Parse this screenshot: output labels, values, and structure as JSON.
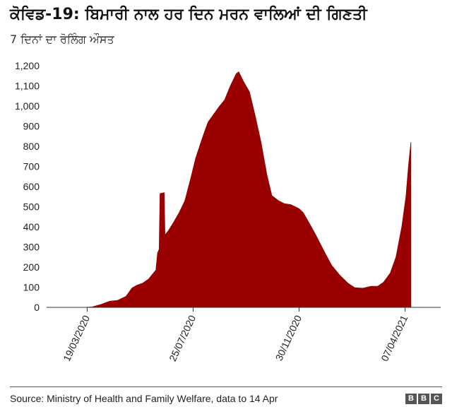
{
  "header": {
    "title": "ਕੋਵਿਡ-19: ਬਿਮਾਰੀ ਨਾਲ ਹਰ ਦਿਨ ਮਰਨ ਵਾਲਿਆਂ ਦੀ ਗਿਣਤੀ",
    "subtitle": "7 ਦਿਨਾਂ ਦਾ ਰੋਲਿੰਗ ਔਸਤ"
  },
  "footer": {
    "source": "Source: Ministry of Health and Family Welfare, data to 14 Apr",
    "logo_letters": [
      "B",
      "B",
      "C"
    ]
  },
  "colors": {
    "fill": "#990000",
    "axis": "#333333",
    "text": "#222222"
  },
  "chart_data": {
    "type": "area",
    "title": "ਕੋਵਿਡ-19: ਬਿਮਾਰੀ ਨਾਲ ਹਰ ਦਿਨ ਮਰਨ ਵਾਲਿਆਂ ਦੀ ਗਿਣਤੀ",
    "subtitle": "7 ਦਿਨਾਂ ਦਾ ਰੋਲਿੰਗ ਔਸਤ",
    "xlabel": "",
    "ylabel": "",
    "ylim": [
      0,
      1200
    ],
    "yticks": [
      0,
      100,
      200,
      300,
      400,
      500,
      600,
      700,
      800,
      900,
      1000,
      1100,
      1200
    ],
    "ytick_labels": [
      "0",
      "100",
      "200",
      "300",
      "400",
      "500",
      "600",
      "700",
      "800",
      "900",
      "1,000",
      "1,100",
      "1,200"
    ],
    "xticks": [
      "19/03/2020",
      "25/07/2020",
      "30/11/2020",
      "07/04/2021"
    ],
    "xlim": [
      "2020-01-30",
      "2021-05-20"
    ],
    "grid": false,
    "series": [
      {
        "values": [
          [
            "2020-01-30",
            0
          ],
          [
            "2020-03-15",
            0
          ],
          [
            "2020-03-25",
            2
          ],
          [
            "2020-04-05",
            15
          ],
          [
            "2020-04-15",
            30
          ],
          [
            "2020-04-25",
            35
          ],
          [
            "2020-05-05",
            55
          ],
          [
            "2020-05-12",
            95
          ],
          [
            "2020-05-18",
            110
          ],
          [
            "2020-05-25",
            120
          ],
          [
            "2020-06-01",
            140
          ],
          [
            "2020-06-10",
            185
          ],
          [
            "2020-06-12",
            270
          ],
          [
            "2020-06-14",
            290
          ],
          [
            "2020-06-15",
            565
          ],
          [
            "2020-06-20",
            570
          ],
          [
            "2020-06-21",
            360
          ],
          [
            "2020-06-25",
            380
          ],
          [
            "2020-07-01",
            420
          ],
          [
            "2020-07-08",
            470
          ],
          [
            "2020-07-15",
            530
          ],
          [
            "2020-07-22",
            640
          ],
          [
            "2020-07-28",
            740
          ],
          [
            "2020-08-05",
            840
          ],
          [
            "2020-08-12",
            920
          ],
          [
            "2020-08-19",
            960
          ],
          [
            "2020-08-26",
            1000
          ],
          [
            "2020-09-01",
            1030
          ],
          [
            "2020-09-08",
            1100
          ],
          [
            "2020-09-15",
            1160
          ],
          [
            "2020-09-18",
            1170
          ],
          [
            "2020-09-24",
            1120
          ],
          [
            "2020-10-01",
            1070
          ],
          [
            "2020-10-08",
            950
          ],
          [
            "2020-10-15",
            820
          ],
          [
            "2020-10-22",
            660
          ],
          [
            "2020-10-28",
            555
          ],
          [
            "2020-11-05",
            530
          ],
          [
            "2020-11-12",
            515
          ],
          [
            "2020-11-20",
            510
          ],
          [
            "2020-11-30",
            490
          ],
          [
            "2020-12-05",
            470
          ],
          [
            "2020-12-12",
            420
          ],
          [
            "2020-12-20",
            360
          ],
          [
            "2020-12-30",
            280
          ],
          [
            "2021-01-08",
            210
          ],
          [
            "2021-01-18",
            160
          ],
          [
            "2021-01-28",
            120
          ],
          [
            "2021-02-05",
            98
          ],
          [
            "2021-02-15",
            95
          ],
          [
            "2021-02-25",
            105
          ],
          [
            "2021-03-05",
            105
          ],
          [
            "2021-03-12",
            125
          ],
          [
            "2021-03-20",
            170
          ],
          [
            "2021-03-27",
            250
          ],
          [
            "2021-04-03",
            400
          ],
          [
            "2021-04-08",
            550
          ],
          [
            "2021-04-11",
            700
          ],
          [
            "2021-04-14",
            820
          ],
          [
            "2021-04-14",
            0
          ]
        ]
      }
    ]
  }
}
